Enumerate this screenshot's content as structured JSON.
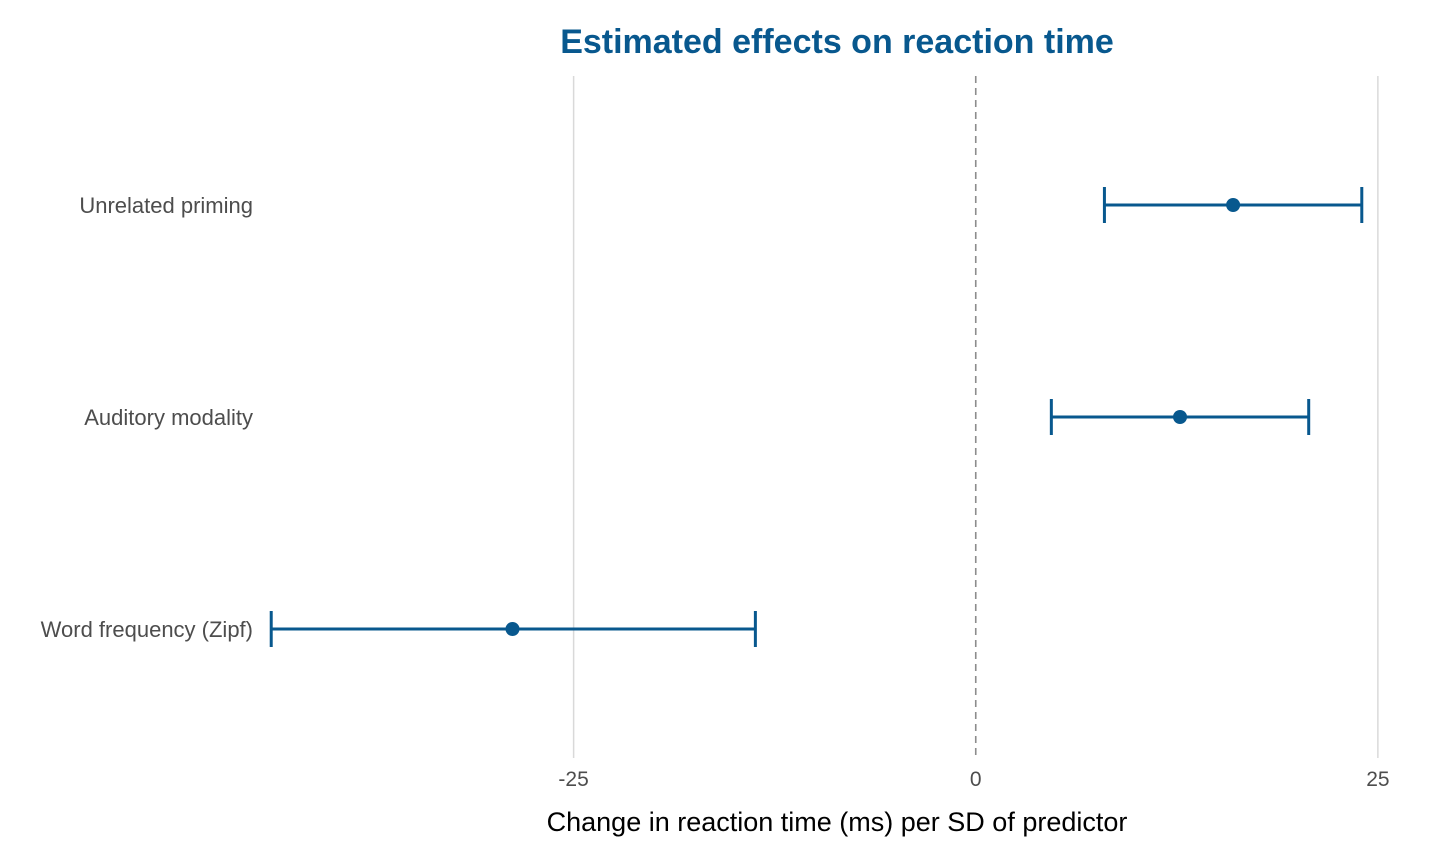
{
  "chart_data": {
    "type": "scatter",
    "subtype": "coefficient-plot-with-confidence-intervals",
    "title": "Estimated effects on reaction time",
    "xlabel": "Change in reaction time (ms) per SD of predictor",
    "ylabel": "",
    "xlim": [
      -44,
      26.5
    ],
    "xticks": [
      -25,
      0,
      25
    ],
    "xtick_labels": [
      "-25",
      "0",
      "25"
    ],
    "reference_line": 0,
    "grid": "vertical-major",
    "legend": "none",
    "categories": [
      "Unrelated priming",
      "Auditory modality",
      "Word frequency (Zipf)"
    ],
    "estimates": [
      16,
      12.7,
      -28.8
    ],
    "ci_lower": [
      8,
      4.7,
      -43.8
    ],
    "ci_upper": [
      24,
      20.7,
      -13.7
    ]
  },
  "colors": {
    "accent": "#08588e",
    "grid": "#d9d9d9",
    "reference": "#8c8c8c",
    "tick_text": "#4d4d4d"
  }
}
